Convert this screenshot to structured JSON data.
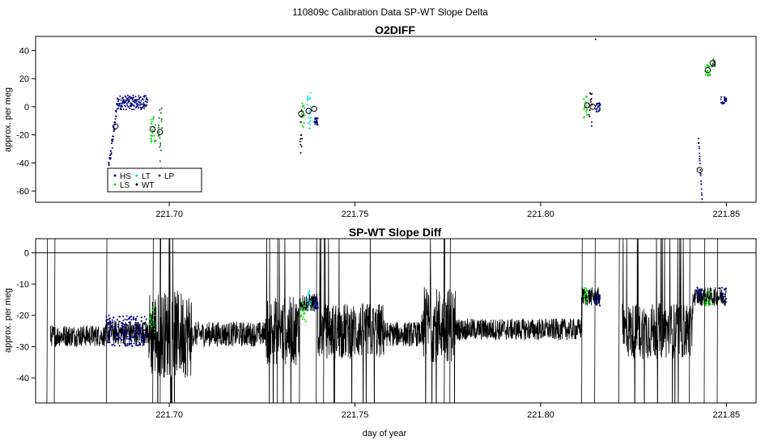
{
  "page_title": "110809c   Calibration Data SP-WT Slope Delta",
  "chart_data": [
    {
      "type": "scatter",
      "title": "O2DIFF",
      "ylabel": "approx. per meg",
      "xlabel": "",
      "xlim": [
        221.664,
        221.858
      ],
      "ylim": [
        -68,
        50
      ],
      "x_ticks": [
        221.7,
        221.75,
        221.8,
        221.85
      ],
      "x_tick_labels": [
        "221.70",
        "221.75",
        "221.80",
        "221.85"
      ],
      "y_ticks": [
        -60,
        -40,
        -20,
        0,
        20,
        40
      ],
      "y_tick_labels": [
        "-60",
        "-40",
        "-20",
        "0",
        "20",
        "40"
      ],
      "legend_placement": "bottom-left",
      "series": [
        {
          "name": "HS",
          "color": "#000080",
          "clusters": [
            {
              "x0": 221.6835,
              "x1": 221.6942,
              "y0": -48,
              "y1": 5,
              "shape": "rise",
              "n": 190
            },
            {
              "x0": 221.739,
              "x1": 221.74,
              "y0": -13,
              "y1": -8,
              "shape": "flat",
              "n": 22
            },
            {
              "x0": 221.8148,
              "x1": 221.8162,
              "y0": -4,
              "y1": 3,
              "shape": "flat",
              "n": 25
            },
            {
              "x0": 221.8425,
              "x1": 221.8435,
              "y0": -68,
              "y1": -22,
              "shape": "drop",
              "n": 22
            },
            {
              "x0": 221.8485,
              "x1": 221.85,
              "y0": 2,
              "y1": 7,
              "shape": "flat",
              "n": 22
            }
          ],
          "extra_points": [
            [
              221.8148,
              48
            ]
          ]
        },
        {
          "name": "LS",
          "color": "#00dd00",
          "clusters": [
            {
              "x0": 221.695,
              "x1": 221.6965,
              "y0": -26,
              "y1": -6,
              "shape": "flat",
              "n": 25
            },
            {
              "x0": 221.7355,
              "x1": 221.7365,
              "y0": -15,
              "y1": 3,
              "shape": "flat",
              "n": 18
            },
            {
              "x0": 221.8115,
              "x1": 221.8125,
              "y0": -8,
              "y1": 8,
              "shape": "flat",
              "n": 18
            },
            {
              "x0": 221.8443,
              "x1": 221.8458,
              "y0": 22,
              "y1": 30,
              "shape": "flat",
              "n": 22
            }
          ]
        },
        {
          "name": "LT",
          "color": "#00dddd",
          "clusters": [
            {
              "x0": 221.737,
              "x1": 221.7382,
              "y0": -16,
              "y1": 10,
              "shape": "flat",
              "n": 22
            }
          ]
        },
        {
          "name": "WT",
          "color": "#000000",
          "clusters": [
            {
              "x0": 221.7352,
              "x1": 221.7358,
              "y0": -38,
              "y1": 5,
              "shape": "flat",
              "n": 12
            },
            {
              "x0": 221.8128,
              "x1": 221.8138,
              "y0": -14,
              "y1": 10,
              "shape": "flat",
              "n": 14
            }
          ]
        },
        {
          "name": "LP",
          "color": "#006400",
          "clusters": [
            {
              "x0": 221.697,
              "x1": 221.698,
              "y0": -47,
              "y1": 3,
              "shape": "flat",
              "n": 20
            },
            {
              "x0": 221.846,
              "x1": 221.847,
              "y0": 28,
              "y1": 34,
              "shape": "flat",
              "n": 14
            }
          ]
        }
      ],
      "mean_markers": [
        {
          "x": 221.6855,
          "y": -14
        },
        {
          "x": 221.6955,
          "y": -16
        },
        {
          "x": 221.6975,
          "y": -18
        },
        {
          "x": 221.7355,
          "y": -5
        },
        {
          "x": 221.7375,
          "y": -3
        },
        {
          "x": 221.739,
          "y": -1.5
        },
        {
          "x": 221.8125,
          "y": 1
        },
        {
          "x": 221.814,
          "y": 0
        },
        {
          "x": 221.8428,
          "y": -45
        },
        {
          "x": 221.845,
          "y": 26
        },
        {
          "x": 221.8463,
          "y": 31
        }
      ]
    },
    {
      "type": "line",
      "title": "SP-WT Slope Diff",
      "ylabel": "approx. per meg",
      "xlabel": "day of year",
      "xlim": [
        221.664,
        221.858
      ],
      "ylim": [
        -48,
        4.5
      ],
      "x_ticks": [
        221.7,
        221.75,
        221.8,
        221.85
      ],
      "x_tick_labels": [
        "221.70",
        "221.75",
        "221.80",
        "221.85"
      ],
      "y_ticks": [
        -40,
        -30,
        -20,
        -10,
        0
      ],
      "y_tick_labels": [
        "-40",
        "-30",
        "-20",
        "-10",
        "0"
      ],
      "hline": 0,
      "line_color": "#000000",
      "line_segments": [
        {
          "x0": 221.668,
          "x1": 221.683,
          "mean": -26.5,
          "amp": 3.5
        },
        {
          "x0": 221.683,
          "x1": 221.6945,
          "mean": -25.5,
          "amp": 4
        },
        {
          "x0": 221.6945,
          "x1": 221.706,
          "mean": -26,
          "amp": 14
        },
        {
          "x0": 221.706,
          "x1": 221.726,
          "mean": -26,
          "amp": 4
        },
        {
          "x0": 221.726,
          "x1": 221.735,
          "mean": -25,
          "amp": 11
        },
        {
          "x0": 221.735,
          "x1": 221.74,
          "mean": -16,
          "amp": 3
        },
        {
          "x0": 221.74,
          "x1": 221.758,
          "mean": -25,
          "amp": 9
        },
        {
          "x0": 221.758,
          "x1": 221.768,
          "mean": -26,
          "amp": 4
        },
        {
          "x0": 221.768,
          "x1": 221.777,
          "mean": -23,
          "amp": 12
        },
        {
          "x0": 221.777,
          "x1": 221.811,
          "mean": -24.5,
          "amp": 3.5
        },
        {
          "x0": 221.811,
          "x1": 221.816,
          "mean": -14,
          "amp": 3
        },
        {
          "x0": 221.822,
          "x1": 221.841,
          "mean": -25,
          "amp": 9
        },
        {
          "x0": 221.841,
          "x1": 221.85,
          "mean": -14,
          "amp": 3
        }
      ],
      "series": [
        {
          "name": "HS",
          "color": "#000080",
          "clusters": [
            {
              "x0": 221.683,
              "x1": 221.694,
              "y0": -30,
              "y1": -20,
              "shape": "flat",
              "n": 200
            },
            {
              "x0": 221.739,
              "x1": 221.74,
              "y0": -18,
              "y1": -14,
              "shape": "flat",
              "n": 25
            },
            {
              "x0": 221.8145,
              "x1": 221.816,
              "y0": -17,
              "y1": -13,
              "shape": "flat",
              "n": 25
            },
            {
              "x0": 221.842,
              "x1": 221.8435,
              "y0": -15,
              "y1": -11,
              "shape": "flat",
              "n": 20
            },
            {
              "x0": 221.848,
              "x1": 221.85,
              "y0": -16,
              "y1": -11,
              "shape": "flat",
              "n": 25
            }
          ]
        },
        {
          "name": "LS",
          "color": "#00dd00",
          "clusters": [
            {
              "x0": 221.6945,
              "x1": 221.6965,
              "y0": -26,
              "y1": -17,
              "shape": "flat",
              "n": 22
            },
            {
              "x0": 221.7355,
              "x1": 221.7368,
              "y0": -22,
              "y1": -16,
              "shape": "flat",
              "n": 18
            },
            {
              "x0": 221.8115,
              "x1": 221.8128,
              "y0": -17,
              "y1": -11,
              "shape": "flat",
              "n": 18
            },
            {
              "x0": 221.8443,
              "x1": 221.8458,
              "y0": -17,
              "y1": -12,
              "shape": "flat",
              "n": 20
            }
          ]
        },
        {
          "name": "LT",
          "color": "#00dddd",
          "clusters": [
            {
              "x0": 221.737,
              "x1": 221.7385,
              "y0": -18,
              "y1": -12,
              "shape": "flat",
              "n": 22
            }
          ]
        }
      ]
    }
  ]
}
